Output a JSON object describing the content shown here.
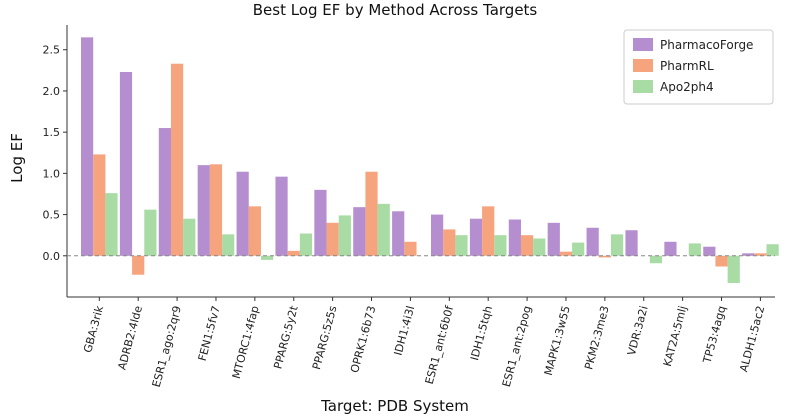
{
  "chart_data": {
    "type": "bar",
    "title": "Best Log EF by Method Across Targets",
    "xlabel": "Target: PDB System",
    "ylabel": "Log EF",
    "ylim": [
      -0.5,
      2.8
    ],
    "yticks": [
      0.0,
      0.5,
      1.0,
      1.5,
      2.0,
      2.5
    ],
    "grid": false,
    "legend_position": "top-right",
    "baseline": {
      "value": 0,
      "style": "dashed"
    },
    "categories": [
      "GBA:3rik",
      "ADRB2:4lde",
      "ESR1_ago:2qr9",
      "FEN1:5fv7",
      "MTORC1:4fap",
      "PPARG:5y2t",
      "PPARG:5z5s",
      "OPRK1:6b73",
      "IDH1:4i3l",
      "ESR1_ant:6b0f",
      "IDH1:5tqh",
      "ESR1_ant:2pog",
      "MAPK1:3w55",
      "PKM2:3me3",
      "VDR:3a2i",
      "KAT2A:5mlj",
      "TP53:4agq",
      "ALDH1:5ac2"
    ],
    "series": [
      {
        "name": "PharmacoForge",
        "color": "#b58ecf",
        "values": [
          2.65,
          2.23,
          1.55,
          1.1,
          1.02,
          0.96,
          0.8,
          0.59,
          0.54,
          0.5,
          0.45,
          0.44,
          0.4,
          0.34,
          0.31,
          0.17,
          0.11,
          0.03
        ]
      },
      {
        "name": "PharmRL",
        "color": "#f6a47e",
        "values": [
          1.23,
          -0.23,
          2.33,
          1.11,
          0.6,
          0.06,
          0.4,
          1.02,
          0.17,
          0.32,
          0.6,
          0.25,
          0.05,
          -0.02,
          0.0,
          0.0,
          -0.13,
          0.03
        ]
      },
      {
        "name": "Apo2ph4",
        "color": "#a8dca4",
        "values": [
          0.76,
          0.56,
          0.45,
          0.26,
          -0.05,
          0.27,
          0.49,
          0.63,
          0.0,
          0.25,
          0.25,
          0.21,
          0.16,
          0.26,
          -0.09,
          0.15,
          -0.33,
          0.14
        ]
      }
    ]
  }
}
